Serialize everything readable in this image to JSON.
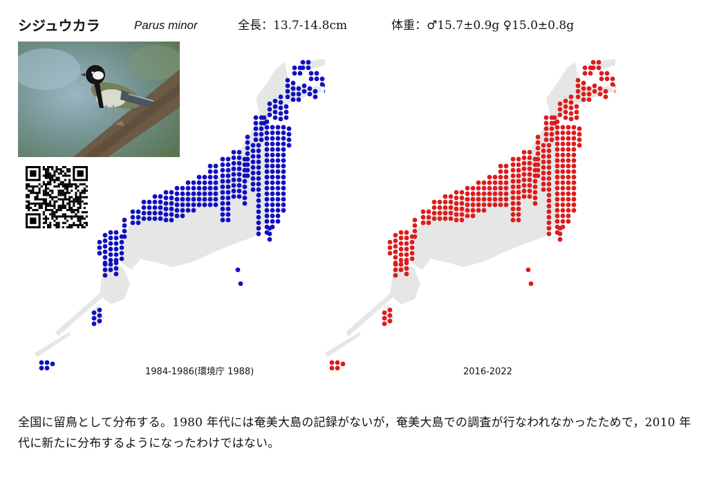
{
  "header": {
    "japanese_name": "シジュウカラ",
    "scientific_name": "Parus minor",
    "length": "全長：13.7-14.8cm",
    "weight": "体重：♂15.7±0.9g ♀15.0±0.8g"
  },
  "maps": [
    {
      "period": "1984-1986(環境庁 1988)",
      "dot_color": "#1010c0"
    },
    {
      "period": "2016-2022",
      "dot_color": "#dd1c1c"
    }
  ],
  "land_color": "#e6e6e6",
  "description": "全国に留鳥として分布する。1980 年代には奄美大島の記録がないが，奄美大島での調査が行なわれなかったためで，2010 年代に新たに分布するようになったわけではない。"
}
